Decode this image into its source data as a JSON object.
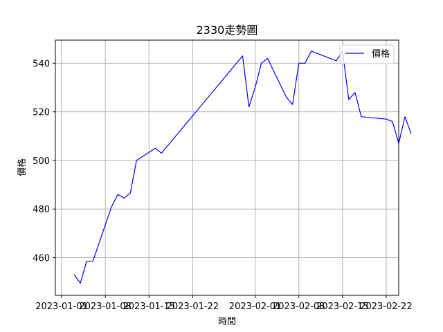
{
  "chart_data": {
    "type": "line",
    "title": "2330走勢圖",
    "xlabel": "時間",
    "ylabel": "價格",
    "x_tick_labels": [
      "2023-01-01",
      "2023-01-08",
      "2023-01-15",
      "2023-01-22",
      "2023-02-01",
      "2023-02-08",
      "2023-02-15",
      "2023-02-22"
    ],
    "y_ticks": [
      460,
      480,
      500,
      520,
      540
    ],
    "xlim": [
      "2022-12-31",
      "2023-02-24"
    ],
    "ylim": [
      444.5,
      549.5
    ],
    "grid": true,
    "legend_position": "top-right",
    "series": [
      {
        "name": "價格",
        "color": "#0000ff",
        "points": [
          {
            "x": "2023-01-03",
            "y": 453
          },
          {
            "x": "2023-01-04",
            "y": 449.5
          },
          {
            "x": "2023-01-05",
            "y": 458.5
          },
          {
            "x": "2023-01-06",
            "y": 458.5
          },
          {
            "x": "2023-01-09",
            "y": 481
          },
          {
            "x": "2023-01-10",
            "y": 486
          },
          {
            "x": "2023-01-11",
            "y": 484.5
          },
          {
            "x": "2023-01-12",
            "y": 486.5
          },
          {
            "x": "2023-01-13",
            "y": 500
          },
          {
            "x": "2023-01-16",
            "y": 505
          },
          {
            "x": "2023-01-17",
            "y": 503
          },
          {
            "x": "2023-01-30",
            "y": 543
          },
          {
            "x": "2023-01-31",
            "y": 522
          },
          {
            "x": "2023-02-01",
            "y": 530
          },
          {
            "x": "2023-02-02",
            "y": 540
          },
          {
            "x": "2023-02-03",
            "y": 542
          },
          {
            "x": "2023-02-06",
            "y": 526
          },
          {
            "x": "2023-02-07",
            "y": 523
          },
          {
            "x": "2023-02-08",
            "y": 540
          },
          {
            "x": "2023-02-09",
            "y": 540
          },
          {
            "x": "2023-02-10",
            "y": 545
          },
          {
            "x": "2023-02-14",
            "y": 541
          },
          {
            "x": "2023-02-15",
            "y": 545
          },
          {
            "x": "2023-02-16",
            "y": 525
          },
          {
            "x": "2023-02-17",
            "y": 528
          },
          {
            "x": "2023-02-18",
            "y": 518
          },
          {
            "x": "2023-02-22",
            "y": 517
          },
          {
            "x": "2023-02-23",
            "y": 516
          },
          {
            "x": "2023-02-24",
            "y": 507
          },
          {
            "x": "2023-02-25",
            "y": 518
          },
          {
            "x": "2023-02-26",
            "y": 511
          }
        ]
      }
    ]
  }
}
